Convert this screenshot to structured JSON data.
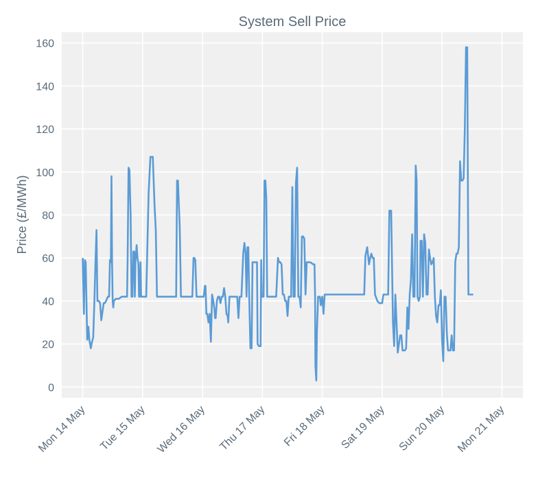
{
  "chart_data": {
    "type": "line",
    "title": "System Sell Price",
    "xlabel": "",
    "ylabel": "Price (£/MWh)",
    "ylim": [
      -5,
      165
    ],
    "xlim": [
      -0.35,
      7.35
    ],
    "yticks": [
      0,
      20,
      40,
      60,
      80,
      100,
      120,
      140,
      160
    ],
    "grid": true,
    "line_color": "#5b9bd5",
    "background_color": "#f0f0f0",
    "xticks": [
      {
        "x": 0,
        "label": "Mon 14 May"
      },
      {
        "x": 1,
        "label": "Tue 15 May"
      },
      {
        "x": 2,
        "label": "Wed 16 May"
      },
      {
        "x": 3,
        "label": "Thu 17 May"
      },
      {
        "x": 4,
        "label": "Fri 18 May"
      },
      {
        "x": 5,
        "label": "Sat 19 May"
      },
      {
        "x": 6,
        "label": "Sun 20 May"
      },
      {
        "x": 7,
        "label": "Mon 21 May"
      }
    ],
    "series": [
      {
        "name": "System Sell Price",
        "x_unit": "days since Mon 14 May 00:00",
        "points": [
          [
            0.0,
            60
          ],
          [
            0.02,
            34
          ],
          [
            0.035,
            59
          ],
          [
            0.05,
            58
          ],
          [
            0.075,
            22
          ],
          [
            0.095,
            28
          ],
          [
            0.11,
            22
          ],
          [
            0.135,
            18
          ],
          [
            0.155,
            21
          ],
          [
            0.175,
            23
          ],
          [
            0.195,
            40
          ],
          [
            0.215,
            60
          ],
          [
            0.23,
            73
          ],
          [
            0.245,
            40
          ],
          [
            0.27,
            40
          ],
          [
            0.29,
            39
          ],
          [
            0.31,
            31
          ],
          [
            0.33,
            35
          ],
          [
            0.35,
            39
          ],
          [
            0.37,
            39
          ],
          [
            0.39,
            40
          ],
          [
            0.42,
            42
          ],
          [
            0.44,
            42
          ],
          [
            0.455,
            59
          ],
          [
            0.47,
            58
          ],
          [
            0.48,
            98
          ],
          [
            0.49,
            58
          ],
          [
            0.5,
            40
          ],
          [
            0.51,
            37
          ],
          [
            0.52,
            40
          ],
          [
            0.55,
            41
          ],
          [
            0.6,
            41
          ],
          [
            0.65,
            42
          ],
          [
            0.7,
            42
          ],
          [
            0.74,
            42
          ],
          [
            0.75,
            60
          ],
          [
            0.765,
            102
          ],
          [
            0.78,
            101
          ],
          [
            0.8,
            80
          ],
          [
            0.815,
            42
          ],
          [
            0.83,
            42
          ],
          [
            0.845,
            63
          ],
          [
            0.86,
            63
          ],
          [
            0.87,
            42
          ],
          [
            0.88,
            58
          ],
          [
            0.9,
            66
          ],
          [
            0.915,
            60
          ],
          [
            0.93,
            57
          ],
          [
            0.94,
            42
          ],
          [
            0.95,
            42
          ],
          [
            0.965,
            58
          ],
          [
            0.975,
            42
          ],
          [
            0.99,
            42
          ],
          [
            1.02,
            42
          ],
          [
            1.05,
            42
          ],
          [
            1.06,
            42
          ],
          [
            1.1,
            90
          ],
          [
            1.13,
            107
          ],
          [
            1.17,
            107
          ],
          [
            1.2,
            84
          ],
          [
            1.22,
            73
          ],
          [
            1.24,
            42
          ],
          [
            1.27,
            42
          ],
          [
            1.3,
            42
          ],
          [
            1.33,
            42
          ],
          [
            1.36,
            42
          ],
          [
            1.38,
            42
          ],
          [
            1.42,
            42
          ],
          [
            1.45,
            42
          ],
          [
            1.52,
            42
          ],
          [
            1.54,
            42
          ],
          [
            1.56,
            42
          ],
          [
            1.575,
            96
          ],
          [
            1.59,
            96
          ],
          [
            1.62,
            74
          ],
          [
            1.64,
            42
          ],
          [
            1.7,
            42
          ],
          [
            1.75,
            42
          ],
          [
            1.8,
            42
          ],
          [
            1.83,
            42
          ],
          [
            1.85,
            60
          ],
          [
            1.865,
            60
          ],
          [
            1.88,
            59
          ],
          [
            1.9,
            42
          ],
          [
            1.93,
            42
          ],
          [
            1.96,
            42
          ],
          [
            1.98,
            42
          ],
          [
            2.02,
            42
          ],
          [
            2.04,
            47
          ],
          [
            2.05,
            47
          ],
          [
            2.065,
            34
          ],
          [
            2.08,
            34
          ],
          [
            2.1,
            30
          ],
          [
            2.12,
            34
          ],
          [
            2.14,
            21
          ],
          [
            2.16,
            43
          ],
          [
            2.18,
            40
          ],
          [
            2.2,
            36
          ],
          [
            2.21,
            32
          ],
          [
            2.22,
            32
          ],
          [
            2.24,
            40
          ],
          [
            2.26,
            42
          ],
          [
            2.28,
            42
          ],
          [
            2.3,
            39
          ],
          [
            2.32,
            42
          ],
          [
            2.34,
            42
          ],
          [
            2.36,
            46
          ],
          [
            2.38,
            42
          ],
          [
            2.4,
            34
          ],
          [
            2.42,
            33
          ],
          [
            2.43,
            30
          ],
          [
            2.45,
            42
          ],
          [
            2.48,
            42
          ],
          [
            2.52,
            42
          ],
          [
            2.56,
            42
          ],
          [
            2.58,
            42
          ],
          [
            2.6,
            32
          ],
          [
            2.62,
            42
          ],
          [
            2.65,
            42
          ],
          [
            2.68,
            62
          ],
          [
            2.7,
            67
          ],
          [
            2.72,
            62
          ],
          [
            2.735,
            42
          ],
          [
            2.75,
            65
          ],
          [
            2.765,
            65
          ],
          [
            2.78,
            42
          ],
          [
            2.79,
            30
          ],
          [
            2.8,
            18
          ],
          [
            2.82,
            18
          ],
          [
            2.835,
            58
          ],
          [
            2.86,
            58
          ],
          [
            2.88,
            58
          ],
          [
            2.9,
            58
          ],
          [
            2.91,
            58
          ],
          [
            2.92,
            20
          ],
          [
            2.94,
            19
          ],
          [
            2.96,
            19
          ],
          [
            2.97,
            19
          ],
          [
            2.98,
            59
          ],
          [
            2.99,
            42
          ],
          [
            3.01,
            42
          ],
          [
            3.02,
            42
          ],
          [
            3.035,
            96
          ],
          [
            3.05,
            96
          ],
          [
            3.065,
            88
          ],
          [
            3.08,
            42
          ],
          [
            3.1,
            42
          ],
          [
            3.13,
            42
          ],
          [
            3.16,
            42
          ],
          [
            3.2,
            42
          ],
          [
            3.23,
            42
          ],
          [
            3.26,
            60
          ],
          [
            3.28,
            58
          ],
          [
            3.3,
            58
          ],
          [
            3.32,
            57
          ],
          [
            3.34,
            43
          ],
          [
            3.36,
            43
          ],
          [
            3.38,
            40
          ],
          [
            3.4,
            40
          ],
          [
            3.42,
            33
          ],
          [
            3.44,
            42
          ],
          [
            3.46,
            42
          ],
          [
            3.48,
            42
          ],
          [
            3.5,
            93
          ],
          [
            3.52,
            42
          ],
          [
            3.54,
            42
          ],
          [
            3.56,
            95
          ],
          [
            3.58,
            102
          ],
          [
            3.6,
            42
          ],
          [
            3.62,
            42
          ],
          [
            3.64,
            37
          ],
          [
            3.66,
            70
          ],
          [
            3.68,
            70
          ],
          [
            3.7,
            69
          ],
          [
            3.72,
            43
          ],
          [
            3.74,
            58
          ],
          [
            3.76,
            58
          ],
          [
            3.8,
            58
          ],
          [
            3.85,
            57
          ],
          [
            3.87,
            57
          ],
          [
            3.88,
            42
          ],
          [
            3.885,
            10
          ],
          [
            3.9,
            3
          ],
          [
            3.91,
            25
          ],
          [
            3.93,
            42
          ],
          [
            3.96,
            42
          ],
          [
            3.975,
            38
          ],
          [
            4.0,
            42
          ],
          [
            4.02,
            34
          ],
          [
            4.04,
            43
          ],
          [
            4.1,
            43
          ],
          [
            4.15,
            43
          ],
          [
            4.2,
            43
          ],
          [
            4.3,
            43
          ],
          [
            4.4,
            43
          ],
          [
            4.5,
            43
          ],
          [
            4.6,
            43
          ],
          [
            4.65,
            43
          ],
          [
            4.7,
            43
          ],
          [
            4.72,
            61
          ],
          [
            4.75,
            65
          ],
          [
            4.78,
            57
          ],
          [
            4.8,
            60
          ],
          [
            4.82,
            62
          ],
          [
            4.84,
            60
          ],
          [
            4.86,
            60
          ],
          [
            4.88,
            43
          ],
          [
            4.92,
            40
          ],
          [
            4.95,
            39
          ],
          [
            4.98,
            39
          ],
          [
            5.0,
            39
          ],
          [
            5.02,
            43
          ],
          [
            5.05,
            43
          ],
          [
            5.08,
            43
          ],
          [
            5.1,
            43
          ],
          [
            5.12,
            82
          ],
          [
            5.15,
            82
          ],
          [
            5.18,
            30
          ],
          [
            5.2,
            19
          ],
          [
            5.22,
            43
          ],
          [
            5.24,
            30
          ],
          [
            5.26,
            16
          ],
          [
            5.28,
            20
          ],
          [
            5.3,
            24
          ],
          [
            5.32,
            24
          ],
          [
            5.34,
            17
          ],
          [
            5.36,
            17
          ],
          [
            5.38,
            17
          ],
          [
            5.4,
            18
          ],
          [
            5.42,
            37
          ],
          [
            5.44,
            27
          ],
          [
            5.46,
            43
          ],
          [
            5.48,
            50
          ],
          [
            5.5,
            71
          ],
          [
            5.52,
            42
          ],
          [
            5.54,
            42
          ],
          [
            5.56,
            103
          ],
          [
            5.575,
            96
          ],
          [
            5.59,
            42
          ],
          [
            5.61,
            40
          ],
          [
            5.63,
            42
          ],
          [
            5.64,
            68
          ],
          [
            5.66,
            68
          ],
          [
            5.68,
            42
          ],
          [
            5.7,
            71
          ],
          [
            5.72,
            67
          ],
          [
            5.74,
            43
          ],
          [
            5.76,
            43
          ],
          [
            5.78,
            64
          ],
          [
            5.8,
            60
          ],
          [
            5.82,
            57
          ],
          [
            5.84,
            58
          ],
          [
            5.86,
            60
          ],
          [
            5.88,
            42
          ],
          [
            5.9,
            33
          ],
          [
            5.92,
            30
          ],
          [
            5.94,
            38
          ],
          [
            5.96,
            38
          ],
          [
            5.98,
            45
          ],
          [
            6.0,
            22
          ],
          [
            6.02,
            12
          ],
          [
            6.04,
            42
          ],
          [
            6.06,
            42
          ],
          [
            6.08,
            25
          ],
          [
            6.1,
            17
          ],
          [
            6.12,
            17
          ],
          [
            6.14,
            17
          ],
          [
            6.16,
            24
          ],
          [
            6.18,
            17
          ],
          [
            6.2,
            17
          ],
          [
            6.22,
            58
          ],
          [
            6.24,
            62
          ],
          [
            6.26,
            62
          ],
          [
            6.28,
            65
          ],
          [
            6.3,
            105
          ],
          [
            6.32,
            96
          ],
          [
            6.34,
            96
          ],
          [
            6.36,
            97
          ],
          [
            6.38,
            120
          ],
          [
            6.4,
            158
          ],
          [
            6.42,
            158
          ],
          [
            6.44,
            43
          ],
          [
            6.5,
            43
          ],
          [
            6.52,
            43
          ]
        ]
      }
    ]
  }
}
